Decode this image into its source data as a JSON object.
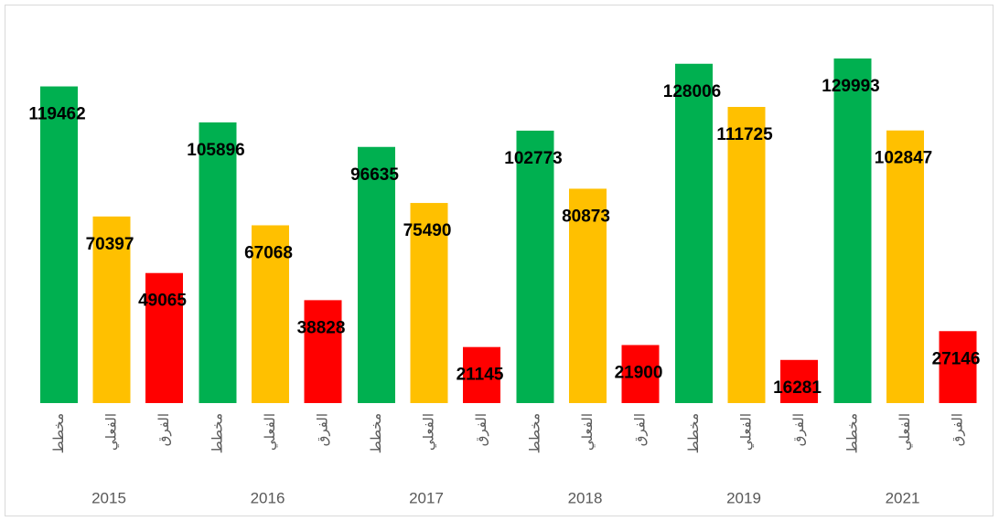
{
  "chart_data": {
    "type": "bar",
    "categories": [
      "2015",
      "2016",
      "2017",
      "2018",
      "2019",
      "2021"
    ],
    "series": [
      {
        "name": "مخطط",
        "color": "#00b050",
        "values": [
          119462,
          105896,
          96635,
          102773,
          128006,
          129993
        ]
      },
      {
        "name": "الفعلي",
        "color": "#ffc000",
        "values": [
          70397,
          67068,
          75490,
          80873,
          111725,
          102847
        ]
      },
      {
        "name": "الفرق",
        "color": "#ff0000",
        "values": [
          49065,
          38828,
          21145,
          21900,
          16281,
          27146
        ]
      }
    ]
  }
}
